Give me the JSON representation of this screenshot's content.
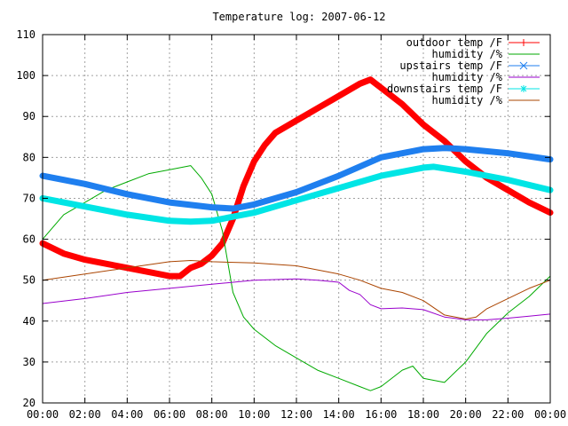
{
  "chart_data": {
    "type": "line",
    "title": "Temperature log: 2007-06-12",
    "xlabel": "",
    "ylabel": "",
    "xlim": [
      "00:00",
      "24:00"
    ],
    "ylim": [
      20,
      110
    ],
    "x_ticks": [
      "00:00",
      "02:00",
      "04:00",
      "06:00",
      "08:00",
      "10:00",
      "12:00",
      "14:00",
      "16:00",
      "18:00",
      "20:00",
      "22:00",
      "00:00"
    ],
    "y_ticks": [
      20,
      30,
      40,
      50,
      60,
      70,
      80,
      90,
      100,
      110
    ],
    "grid": true,
    "legend_position": "top-right",
    "series": [
      {
        "name": "outdoor temp /F",
        "color": "#ff0000",
        "marker": "plus",
        "style": "thick",
        "x": [
          "00:00",
          "01:00",
          "02:00",
          "03:00",
          "04:00",
          "05:00",
          "06:00",
          "06:30",
          "07:00",
          "07:30",
          "08:00",
          "08:30",
          "09:00",
          "09:30",
          "10:00",
          "10:30",
          "11:00",
          "12:00",
          "13:00",
          "14:00",
          "15:00",
          "15:30",
          "16:00",
          "17:00",
          "18:00",
          "19:00",
          "20:00",
          "21:00",
          "22:00",
          "23:00",
          "24:00"
        ],
        "y": [
          59,
          56.5,
          55,
          54,
          53,
          52,
          51,
          51,
          53,
          54,
          56,
          59,
          65,
          73,
          79,
          83,
          86,
          89,
          92,
          95,
          98,
          99,
          97,
          93,
          88,
          84,
          79,
          75,
          72,
          69,
          66.5
        ]
      },
      {
        "name": "humidity /%",
        "color": "#00aa00",
        "marker": "none",
        "style": "thin",
        "x": [
          "00:00",
          "01:00",
          "02:00",
          "03:00",
          "04:00",
          "05:00",
          "06:00",
          "07:00",
          "07:30",
          "08:00",
          "08:30",
          "09:00",
          "09:30",
          "10:00",
          "11:00",
          "12:00",
          "13:00",
          "14:00",
          "15:00",
          "15:30",
          "16:00",
          "17:00",
          "17:30",
          "18:00",
          "19:00",
          "20:00",
          "21:00",
          "22:00",
          "23:00",
          "24:00"
        ],
        "y": [
          60,
          66,
          69,
          72,
          74,
          76,
          77,
          78,
          75,
          71,
          62,
          47,
          41,
          38,
          34,
          31,
          28,
          26,
          24,
          23,
          24,
          28,
          29,
          26,
          25,
          30,
          37,
          42,
          46,
          51
        ]
      },
      {
        "name": "upstairs temp /F",
        "color": "#1f7fef",
        "marker": "x",
        "style": "thick",
        "x": [
          "00:00",
          "02:00",
          "04:00",
          "06:00",
          "08:00",
          "09:00",
          "10:00",
          "12:00",
          "14:00",
          "16:00",
          "18:00",
          "19:00",
          "20:00",
          "22:00",
          "24:00"
        ],
        "y": [
          75.5,
          73.5,
          71,
          69,
          67.8,
          67.5,
          68.5,
          71.5,
          75.5,
          80,
          82,
          82.3,
          82,
          81,
          79.5
        ]
      },
      {
        "name": "humidity /%",
        "color": "#9900cc",
        "marker": "none",
        "style": "thin",
        "x": [
          "00:00",
          "02:00",
          "04:00",
          "06:00",
          "08:00",
          "10:00",
          "12:00",
          "13:00",
          "14:00",
          "14:30",
          "15:00",
          "15:30",
          "16:00",
          "17:00",
          "18:00",
          "19:00",
          "20:00",
          "21:00",
          "22:00",
          "23:00",
          "24:00"
        ],
        "y": [
          44.3,
          45.5,
          47,
          48,
          49,
          50,
          50.3,
          50,
          49.5,
          47.5,
          46.5,
          44,
          43,
          43.2,
          42.8,
          41,
          40.3,
          40.3,
          40.7,
          41.2,
          41.7
        ]
      },
      {
        "name": "downstairs temp /F",
        "color": "#00e5e5",
        "marker": "star",
        "style": "thick",
        "x": [
          "00:00",
          "02:00",
          "04:00",
          "06:00",
          "07:00",
          "08:00",
          "10:00",
          "12:00",
          "14:00",
          "16:00",
          "18:00",
          "18:30",
          "20:00",
          "22:00",
          "24:00"
        ],
        "y": [
          70,
          68,
          66,
          64.5,
          64.3,
          64.5,
          66.5,
          69.5,
          72.5,
          75.5,
          77.5,
          77.7,
          76.5,
          74.5,
          72
        ]
      },
      {
        "name": "humidity /%",
        "color": "#aa4400",
        "marker": "none",
        "style": "thin",
        "x": [
          "00:00",
          "02:00",
          "04:00",
          "06:00",
          "07:00",
          "08:00",
          "10:00",
          "12:00",
          "14:00",
          "15:00",
          "16:00",
          "17:00",
          "18:00",
          "19:00",
          "20:00",
          "20:30",
          "21:00",
          "22:00",
          "23:00",
          "24:00"
        ],
        "y": [
          50,
          51.5,
          53,
          54.5,
          54.8,
          54.5,
          54.2,
          53.5,
          51.5,
          50,
          48,
          47,
          45,
          41.5,
          40.5,
          41,
          43,
          45.5,
          48,
          50
        ]
      }
    ]
  }
}
